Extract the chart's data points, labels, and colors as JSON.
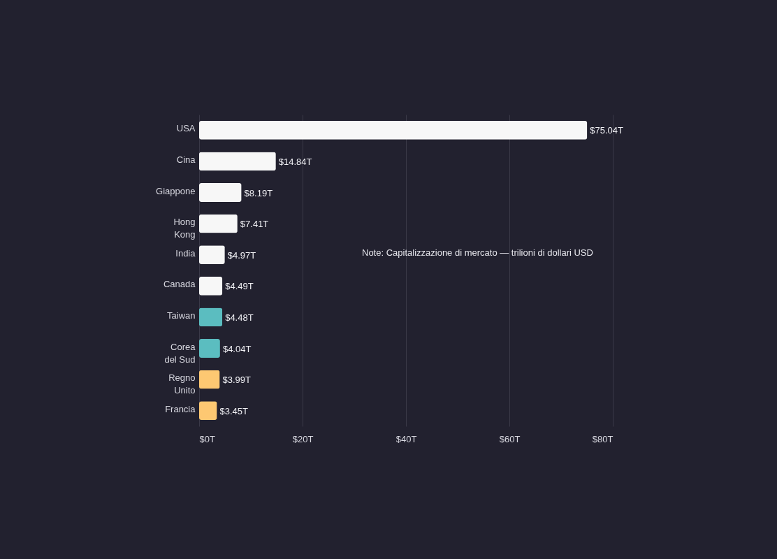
{
  "chart_data": {
    "type": "bar",
    "orientation": "horizontal",
    "categories": [
      "USA",
      "Cina",
      "Giappone",
      "Hong Kong",
      "India",
      "Canada",
      "Taiwan",
      "Corea del Sud",
      "Regno Unito",
      "Francia"
    ],
    "values": [
      75.04,
      14.84,
      8.19,
      7.41,
      4.97,
      4.49,
      4.48,
      4.04,
      3.99,
      3.45
    ],
    "colors": [
      "#f7f7f7",
      "#f7f7f7",
      "#f7f7f7",
      "#f7f7f7",
      "#f7f7f7",
      "#f7f7f7",
      "#5bbdc0",
      "#5bbdc0",
      "#fdc872",
      "#fdc872"
    ],
    "value_labels": [
      "$75.04T",
      "$14.84T",
      "$8.19T",
      "$7.41T",
      "$4.97T",
      "$4.49T",
      "$4.48T",
      "$4.04T",
      "$3.99T",
      "$3.45T"
    ],
    "xlim": [
      0,
      80
    ],
    "xticks": [
      {
        "value": 0,
        "label": "$0T"
      },
      {
        "value": 20,
        "label": "$20T"
      },
      {
        "value": 40,
        "label": "$40T"
      },
      {
        "value": 60,
        "label": "$60T"
      },
      {
        "value": 80,
        "label": "$80T"
      }
    ],
    "grid": "x",
    "annotations": [
      "Note: Capitalizzazione di mercato — trilioni di dollari USD"
    ]
  }
}
